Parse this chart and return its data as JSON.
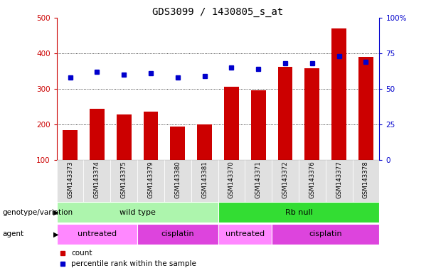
{
  "title": "GDS3099 / 1430805_s_at",
  "samples": [
    "GSM143373",
    "GSM143374",
    "GSM143375",
    "GSM143379",
    "GSM143380",
    "GSM143381",
    "GSM143370",
    "GSM143371",
    "GSM143372",
    "GSM143376",
    "GSM143377",
    "GSM143378"
  ],
  "counts": [
    183,
    244,
    227,
    236,
    193,
    200,
    305,
    296,
    362,
    358,
    470,
    390
  ],
  "percentile_ranks": [
    58,
    62,
    60,
    61,
    58,
    59,
    65,
    64,
    68,
    68,
    73,
    69
  ],
  "bar_color": "#cc0000",
  "dot_color": "#0000cc",
  "left_ylim": [
    100,
    500
  ],
  "right_ylim": [
    0,
    100
  ],
  "left_yticks": [
    100,
    200,
    300,
    400,
    500
  ],
  "right_yticks": [
    0,
    25,
    50,
    75,
    100
  ],
  "right_yticklabels": [
    "0",
    "25",
    "50",
    "75",
    "100%"
  ],
  "grid_lines": [
    200,
    300,
    400
  ],
  "genotype_groups": [
    {
      "label": "wild type",
      "start": 0,
      "end": 6,
      "color": "#adf5ad"
    },
    {
      "label": "Rb null",
      "start": 6,
      "end": 12,
      "color": "#33dd33"
    }
  ],
  "agent_groups": [
    {
      "label": "untreated",
      "start": 0,
      "end": 3,
      "color": "#ff88ff"
    },
    {
      "label": "cisplatin",
      "start": 3,
      "end": 6,
      "color": "#dd44dd"
    },
    {
      "label": "untreated",
      "start": 6,
      "end": 8,
      "color": "#ff88ff"
    },
    {
      "label": "cisplatin",
      "start": 8,
      "end": 12,
      "color": "#dd44dd"
    }
  ],
  "legend_items": [
    {
      "label": "count",
      "color": "#cc0000"
    },
    {
      "label": "percentile rank within the sample",
      "color": "#0000cc"
    }
  ],
  "title_fontsize": 10,
  "tick_fontsize": 7.5,
  "label_fontsize": 8,
  "bar_width": 0.55
}
